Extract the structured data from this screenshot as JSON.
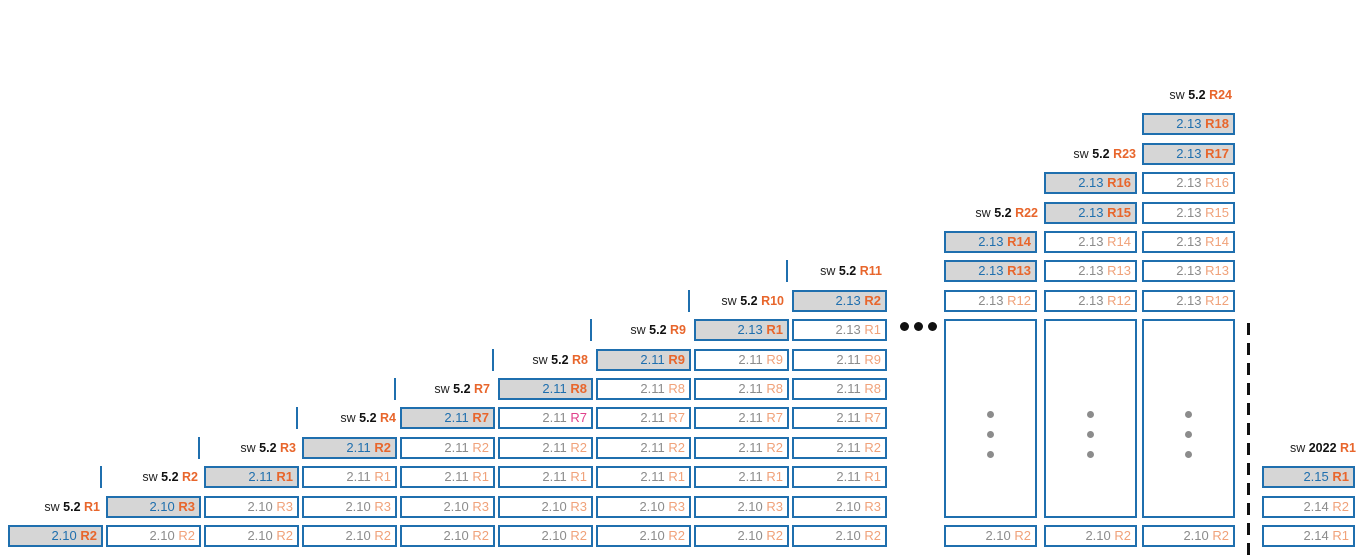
{
  "labels": [
    {
      "prefix": "sw",
      "ver": "5.2",
      "rel": "R1"
    },
    {
      "prefix": "sw",
      "ver": "5.2",
      "rel": "R2"
    },
    {
      "prefix": "sw",
      "ver": "5.2",
      "rel": "R3"
    },
    {
      "prefix": "sw",
      "ver": "5.2",
      "rel": "R4"
    },
    {
      "prefix": "sw",
      "ver": "5.2",
      "rel": "R7"
    },
    {
      "prefix": "sw",
      "ver": "5.2",
      "rel": "R8"
    },
    {
      "prefix": "sw",
      "ver": "5.2",
      "rel": "R9"
    },
    {
      "prefix": "sw",
      "ver": "5.2",
      "rel": "R10"
    },
    {
      "prefix": "sw",
      "ver": "5.2",
      "rel": "R11"
    },
    {
      "prefix": "sw",
      "ver": "5.2",
      "rel": "R22"
    },
    {
      "prefix": "sw",
      "ver": "5.2",
      "rel": "R23"
    },
    {
      "prefix": "sw",
      "ver": "5.2",
      "rel": "R24"
    },
    {
      "prefix": "sw",
      "ver": "2022",
      "rel": "R1"
    }
  ],
  "stacks": [
    [
      {
        "v": "2.10",
        "r": "R2",
        "hl": true
      }
    ],
    [
      {
        "v": "2.10",
        "r": "R2"
      },
      {
        "v": "2.10",
        "r": "R3",
        "hl": true
      }
    ],
    [
      {
        "v": "2.10",
        "r": "R2"
      },
      {
        "v": "2.10",
        "r": "R3"
      },
      {
        "v": "2.11",
        "r": "R1",
        "hl": true
      }
    ],
    [
      {
        "v": "2.10",
        "r": "R2"
      },
      {
        "v": "2.10",
        "r": "R3"
      },
      {
        "v": "2.11",
        "r": "R1"
      },
      {
        "v": "2.11",
        "r": "R2",
        "hl": true
      }
    ],
    [
      {
        "v": "2.10",
        "r": "R2"
      },
      {
        "v": "2.10",
        "r": "R3"
      },
      {
        "v": "2.11",
        "r": "R1"
      },
      {
        "v": "2.11",
        "r": "R2"
      },
      {
        "v": "2.11",
        "r": "R7",
        "hl": true
      }
    ],
    [
      {
        "v": "2.10",
        "r": "R2"
      },
      {
        "v": "2.10",
        "r": "R3"
      },
      {
        "v": "2.11",
        "r": "R1"
      },
      {
        "v": "2.11",
        "r": "R2"
      },
      {
        "v": "2.11",
        "r": "R7",
        "pink": true
      },
      {
        "v": "2.11",
        "r": "R8",
        "hl": true
      }
    ],
    [
      {
        "v": "2.10",
        "r": "R2"
      },
      {
        "v": "2.10",
        "r": "R3"
      },
      {
        "v": "2.11",
        "r": "R1"
      },
      {
        "v": "2.11",
        "r": "R2"
      },
      {
        "v": "2.11",
        "r": "R7"
      },
      {
        "v": "2.11",
        "r": "R8"
      },
      {
        "v": "2.11",
        "r": "R9",
        "hl": true
      }
    ],
    [
      {
        "v": "2.10",
        "r": "R2"
      },
      {
        "v": "2.10",
        "r": "R3"
      },
      {
        "v": "2.11",
        "r": "R1"
      },
      {
        "v": "2.11",
        "r": "R2"
      },
      {
        "v": "2.11",
        "r": "R7"
      },
      {
        "v": "2.11",
        "r": "R8"
      },
      {
        "v": "2.11",
        "r": "R9"
      },
      {
        "v": "2.13",
        "r": "R1",
        "hl": true
      }
    ],
    [
      {
        "v": "2.10",
        "r": "R2"
      },
      {
        "v": "2.10",
        "r": "R3"
      },
      {
        "v": "2.11",
        "r": "R1"
      },
      {
        "v": "2.11",
        "r": "R2"
      },
      {
        "v": "2.11",
        "r": "R7"
      },
      {
        "v": "2.11",
        "r": "R8"
      },
      {
        "v": "2.11",
        "r": "R9"
      },
      {
        "v": "2.13",
        "r": "R1"
      },
      {
        "v": "2.13",
        "r": "R2",
        "hl": true
      }
    ],
    [
      {
        "v": "2.10",
        "r": "R2"
      },
      {
        "v": "2.13",
        "r": "R12"
      },
      {
        "v": "2.13",
        "r": "R13",
        "hl": true
      },
      {
        "v": "2.13",
        "r": "R14",
        "hl": true
      }
    ],
    [
      {
        "v": "2.10",
        "r": "R2"
      },
      {
        "v": "2.13",
        "r": "R12"
      },
      {
        "v": "2.13",
        "r": "R13"
      },
      {
        "v": "2.13",
        "r": "R14"
      },
      {
        "v": "2.13",
        "r": "R15",
        "hl": true
      },
      {
        "v": "2.13",
        "r": "R16",
        "hl": true
      }
    ],
    [
      {
        "v": "2.10",
        "r": "R2"
      },
      {
        "v": "2.13",
        "r": "R12"
      },
      {
        "v": "2.13",
        "r": "R13"
      },
      {
        "v": "2.13",
        "r": "R14"
      },
      {
        "v": "2.13",
        "r": "R15"
      },
      {
        "v": "2.13",
        "r": "R16"
      },
      {
        "v": "2.13",
        "r": "R17",
        "hl": true
      },
      {
        "v": "2.13",
        "r": "R18",
        "hl": true
      }
    ],
    [
      {
        "v": "2.14",
        "r": "R1"
      },
      {
        "v": "2.14",
        "r": "R2"
      },
      {
        "v": "2.15",
        "r": "R1",
        "hl": true
      }
    ]
  ],
  "colors": {
    "border": "#1f6fae",
    "accent": "#e8662c",
    "faded": "#f0a27a",
    "grey": "#8c8c8c",
    "highlight": "#d6d6d6",
    "pink": "#e0408a"
  }
}
